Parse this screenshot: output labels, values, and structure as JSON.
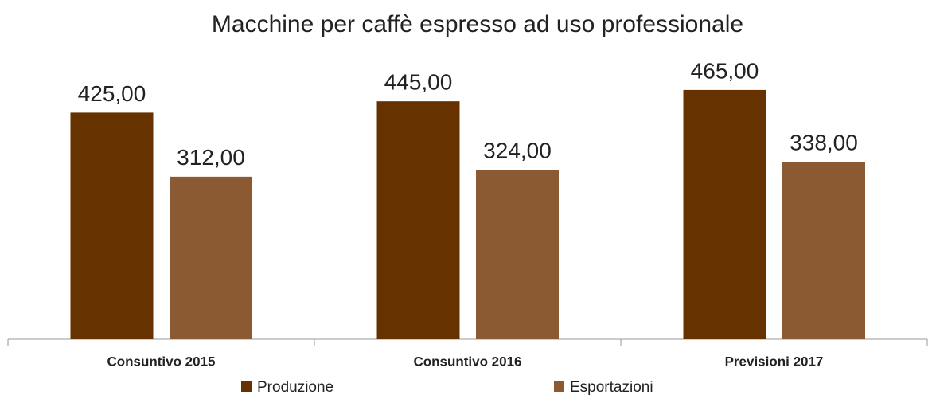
{
  "chart_data": {
    "type": "bar",
    "title": "Macchine per caffè espresso ad uso professionale",
    "categories": [
      "Consuntivo 2015",
      "Consuntivo 2016",
      "Previsioni 2017"
    ],
    "series": [
      {
        "name": "Produzione",
        "color": "#663300",
        "values": [
          425,
          445,
          465
        ],
        "value_labels": [
          "425,00",
          "445,00",
          "465,00"
        ]
      },
      {
        "name": "Esportazioni",
        "color": "#8b5a32",
        "values": [
          312,
          324,
          338
        ],
        "value_labels": [
          "312,00",
          "324,00",
          "338,00"
        ]
      }
    ],
    "legend": "bottom"
  }
}
